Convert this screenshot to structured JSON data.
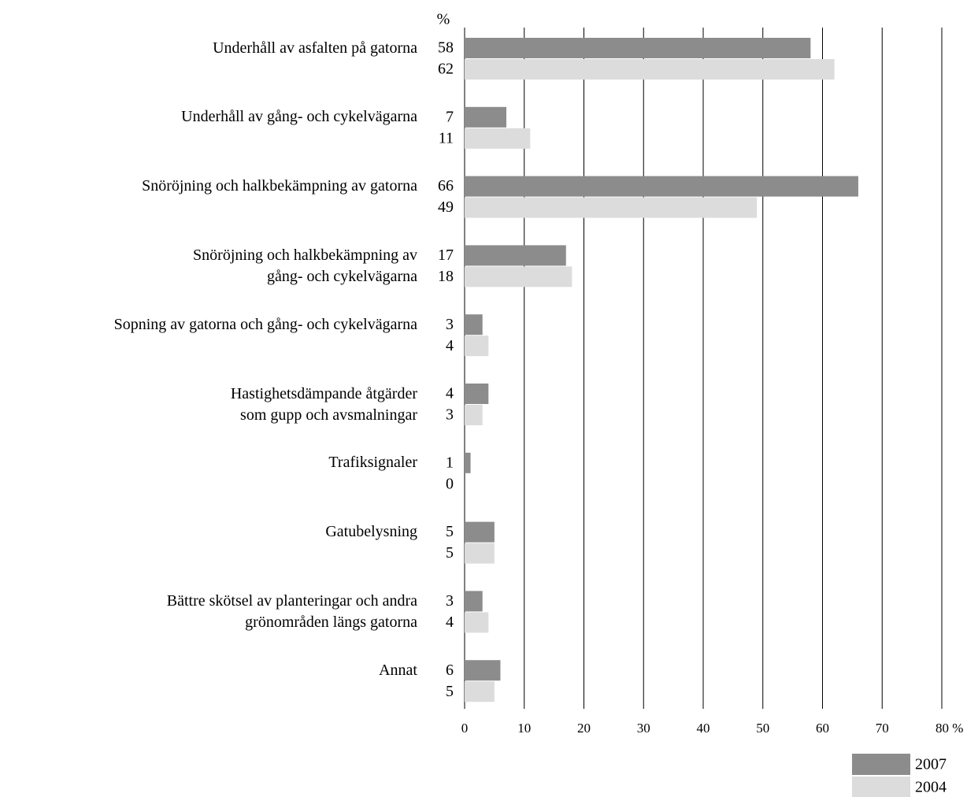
{
  "chart_data": {
    "type": "bar",
    "orientation": "horizontal",
    "unit_label": "%",
    "categories": [
      "Underhåll av asfalten på gatorna",
      "Underhåll av gång- och cykelvägarna",
      "Snöröjning och halkbekämpning av gatorna",
      "Snöröjning och halkbekämpning av\ngång- och cykelvägarna",
      "Sopning av gatorna och gång- och cykelvägarna",
      "Hastighetsdämpande åtgärder\nsom gupp och avsmalningar",
      "Trafiksignaler",
      "Gatubelysning",
      "Bättre skötsel av planteringar och andra\ngrönområden längs gatorna",
      "Annat"
    ],
    "series": [
      {
        "name": "2007",
        "color": "#8c8c8c",
        "values": [
          58,
          7,
          66,
          17,
          3,
          4,
          1,
          5,
          3,
          6
        ]
      },
      {
        "name": "2004",
        "color": "#dcdcdc",
        "values": [
          62,
          11,
          49,
          18,
          4,
          3,
          0,
          5,
          4,
          5
        ]
      }
    ],
    "xlim": [
      0,
      80
    ],
    "xticks": [
      0,
      10,
      20,
      30,
      40,
      50,
      60,
      70,
      {
        "value": 80,
        "label": "80 %"
      }
    ],
    "grid": true,
    "legend": "bottom-right"
  }
}
